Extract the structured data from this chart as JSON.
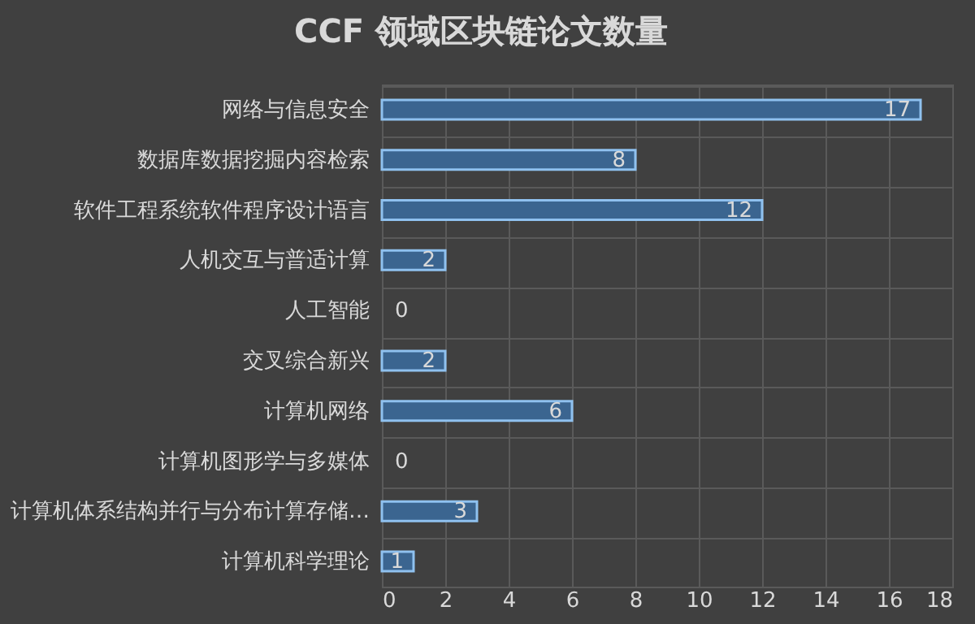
{
  "chart_data": {
    "type": "bar",
    "orientation": "horizontal",
    "title": "CCF 领域区块链论文数量",
    "categories": [
      "网络与信息安全",
      "数据库数据挖掘内容检索",
      "软件工程系统软件程序设计语言",
      "人机交互与普适计算",
      "人工智能",
      "交叉综合新兴",
      "计算机网络",
      "计算机图形学与多媒体",
      "计算机体系结构并行与分布计算存储…",
      "计算机科学理论"
    ],
    "values": [
      17,
      8,
      12,
      2,
      0,
      2,
      6,
      0,
      3,
      1
    ],
    "color": "#3b6590",
    "xlim": [
      0,
      18
    ],
    "xticks": [
      0,
      2,
      4,
      6,
      8,
      10,
      12,
      14,
      16,
      18
    ],
    "grid": true,
    "data_labels": true
  }
}
